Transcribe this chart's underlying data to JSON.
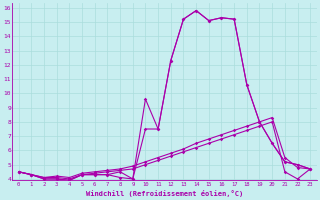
{
  "xlabel": "Windchill (Refroidissement éolien,°C)",
  "bg_color": "#c8eef0",
  "line_color": "#aa00aa",
  "grid_color": "#aadddd",
  "x_hours": [
    0,
    1,
    2,
    3,
    4,
    5,
    6,
    7,
    8,
    9,
    10,
    11,
    12,
    13,
    14,
    15,
    16,
    17,
    18,
    19,
    20,
    21,
    22,
    23
  ],
  "curve1": [
    4.5,
    4.3,
    4.0,
    4.0,
    3.9,
    4.3,
    4.3,
    4.3,
    4.1,
    4.0,
    7.5,
    7.5,
    12.3,
    15.2,
    15.8,
    15.1,
    15.3,
    15.2,
    10.6,
    8.0,
    6.5,
    5.2,
    5.0,
    4.7
  ],
  "curve2": [
    4.5,
    4.3,
    4.0,
    4.0,
    3.9,
    4.3,
    4.3,
    4.3,
    4.5,
    4.0,
    9.6,
    7.5,
    12.3,
    15.2,
    15.8,
    15.1,
    15.3,
    15.2,
    10.6,
    8.0,
    6.5,
    5.2,
    5.0,
    4.7
  ],
  "curve3": [
    4.5,
    4.3,
    4.1,
    4.1,
    4.0,
    4.3,
    4.4,
    4.5,
    4.6,
    4.7,
    5.0,
    5.3,
    5.6,
    5.9,
    6.2,
    6.5,
    6.8,
    7.1,
    7.4,
    7.7,
    8.0,
    4.5,
    4.0,
    4.7
  ],
  "curve4": [
    4.5,
    4.3,
    4.1,
    4.2,
    4.1,
    4.4,
    4.5,
    4.6,
    4.7,
    4.9,
    5.2,
    5.5,
    5.8,
    6.1,
    6.5,
    6.8,
    7.1,
    7.4,
    7.7,
    8.0,
    8.3,
    5.5,
    4.8,
    4.7
  ],
  "ylim": [
    4,
    16
  ],
  "yticks": [
    4,
    5,
    6,
    7,
    8,
    9,
    10,
    11,
    12,
    13,
    14,
    15,
    16
  ],
  "xlim_min": -0.5,
  "xlim_max": 23.5
}
